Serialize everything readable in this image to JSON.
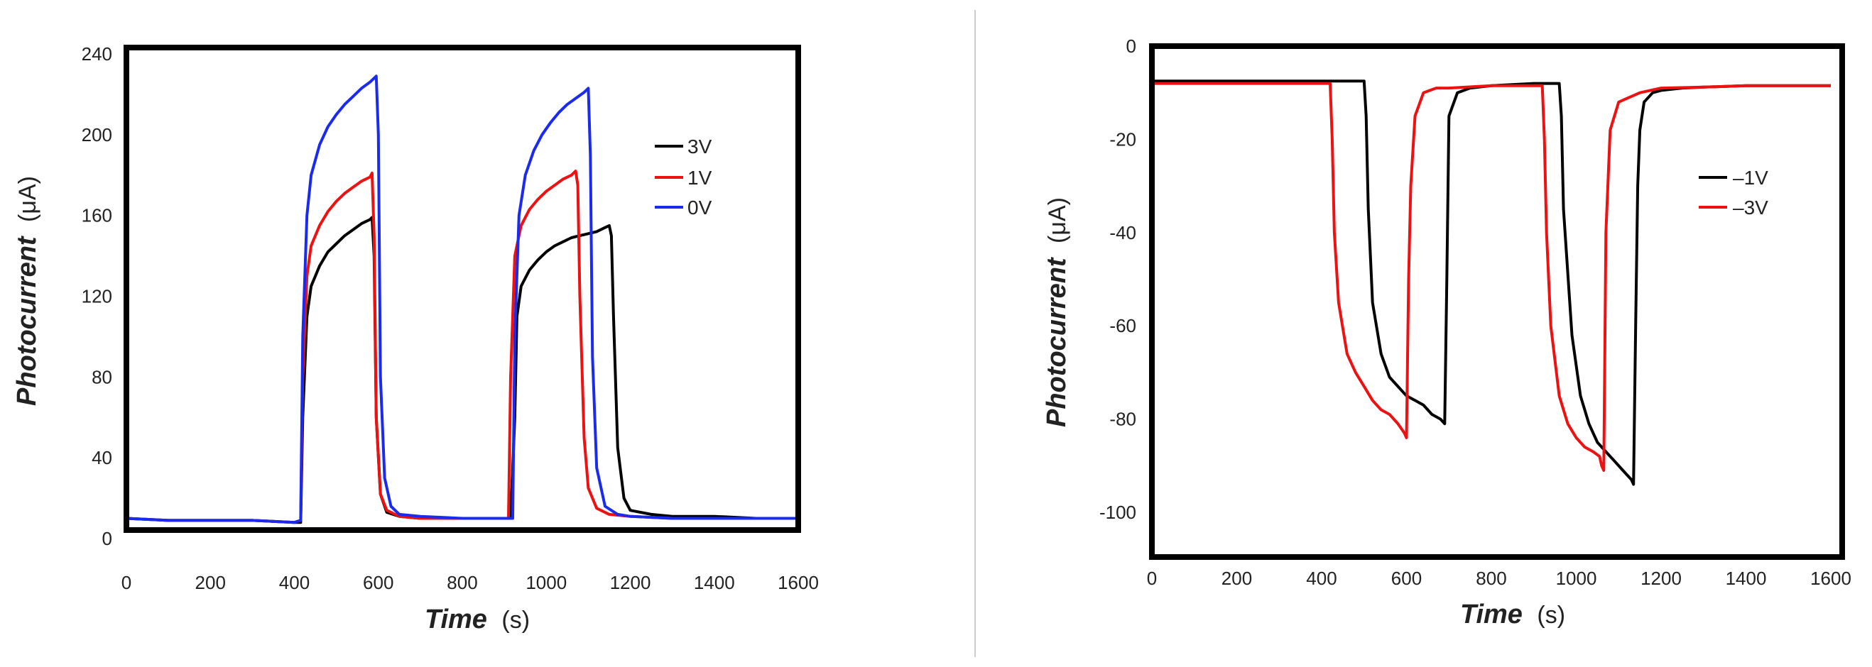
{
  "figure": {
    "divider_color": "#cccccc"
  },
  "chart_data": [
    {
      "type": "line",
      "title": "",
      "xlabel": "Time",
      "xlabel_unit": "(s)",
      "ylabel": "Photocurrent",
      "ylabel_unit": "(μA)",
      "xlim": [
        0,
        1600
      ],
      "ylim": [
        -5,
        245
      ],
      "xticks": [
        0,
        200,
        400,
        600,
        800,
        1000,
        1200,
        1400,
        1600
      ],
      "yticks": [
        0,
        40,
        80,
        120,
        160,
        200,
        240
      ],
      "legend_position": "top-right",
      "series": [
        {
          "name": "3V",
          "color": "#000000",
          "x": [
            0,
            100,
            200,
            300,
            400,
            415,
            420,
            430,
            440,
            460,
            480,
            500,
            520,
            540,
            560,
            580,
            585,
            590,
            595,
            605,
            620,
            650,
            700,
            800,
            900,
            915,
            925,
            930,
            940,
            960,
            980,
            1000,
            1020,
            1040,
            1060,
            1080,
            1100,
            1120,
            1140,
            1150,
            1155,
            1160,
            1170,
            1185,
            1200,
            1250,
            1300,
            1400,
            1500,
            1600
          ],
          "y": [
            10,
            9,
            9,
            9,
            8,
            8,
            60,
            110,
            125,
            135,
            142,
            146,
            150,
            153,
            156,
            158,
            159,
            140,
            60,
            22,
            13,
            11,
            10,
            10,
            10,
            10,
            60,
            110,
            125,
            133,
            138,
            142,
            145,
            147,
            149,
            150,
            151,
            152,
            154,
            155,
            150,
            110,
            45,
            20,
            14,
            12,
            11,
            11,
            10,
            10
          ]
        },
        {
          "name": "1V",
          "color": "#ee1111",
          "x": [
            0,
            100,
            200,
            300,
            400,
            415,
            420,
            430,
            440,
            460,
            480,
            500,
            520,
            540,
            560,
            580,
            585,
            590,
            595,
            605,
            620,
            650,
            700,
            800,
            900,
            910,
            915,
            925,
            940,
            960,
            980,
            1000,
            1020,
            1040,
            1060,
            1070,
            1075,
            1080,
            1090,
            1100,
            1120,
            1150,
            1200,
            1300,
            1400,
            1500,
            1600
          ],
          "y": [
            10,
            9,
            9,
            9,
            8,
            9,
            80,
            130,
            145,
            155,
            162,
            167,
            171,
            174,
            177,
            179,
            181,
            150,
            60,
            22,
            14,
            11,
            10,
            10,
            10,
            10,
            80,
            140,
            155,
            163,
            168,
            172,
            175,
            178,
            180,
            182,
            175,
            120,
            50,
            25,
            15,
            12,
            11,
            10,
            10,
            10,
            10
          ]
        },
        {
          "name": "0V",
          "color": "#1a2aee",
          "x": [
            0,
            100,
            200,
            300,
            400,
            415,
            420,
            430,
            440,
            460,
            480,
            500,
            520,
            540,
            560,
            580,
            595,
            600,
            605,
            615,
            630,
            650,
            700,
            800,
            900,
            920,
            925,
            935,
            950,
            970,
            990,
            1010,
            1030,
            1050,
            1070,
            1090,
            1100,
            1105,
            1110,
            1120,
            1140,
            1170,
            1200,
            1300,
            1400,
            1500,
            1600
          ],
          "y": [
            10,
            9,
            9,
            9,
            8,
            9,
            100,
            160,
            180,
            195,
            204,
            210,
            215,
            219,
            223,
            226,
            229,
            200,
            80,
            30,
            16,
            12,
            11,
            10,
            10,
            10,
            100,
            160,
            180,
            192,
            200,
            206,
            211,
            215,
            218,
            221,
            223,
            190,
            90,
            35,
            16,
            12,
            11,
            10,
            10,
            10,
            10
          ]
        }
      ]
    },
    {
      "type": "line",
      "title": "",
      "xlabel": "Time",
      "xlabel_unit": "(s)",
      "ylabel": "Photocurrent",
      "ylabel_unit": "(μA)",
      "xlim": [
        0,
        1650
      ],
      "ylim": [
        -110,
        0
      ],
      "xticks": [
        0,
        200,
        400,
        600,
        800,
        1000,
        1200,
        1400,
        1600
      ],
      "yticks": [
        0,
        -20,
        -40,
        -60,
        -80,
        -100
      ],
      "legend_position": "right",
      "series": [
        {
          "name": "–1V",
          "color": "#000000",
          "x": [
            0,
            100,
            200,
            300,
            400,
            500,
            505,
            510,
            520,
            540,
            560,
            580,
            600,
            620,
            640,
            660,
            680,
            690,
            695,
            700,
            720,
            750,
            800,
            900,
            950,
            960,
            965,
            970,
            990,
            1010,
            1030,
            1050,
            1070,
            1090,
            1110,
            1130,
            1135,
            1140,
            1145,
            1150,
            1160,
            1180,
            1200,
            1250,
            1300,
            1400,
            1500,
            1600
          ],
          "y": [
            -7.5,
            -7.5,
            -7.5,
            -7.5,
            -7.5,
            -7.5,
            -15,
            -35,
            -55,
            -66,
            -71,
            -73,
            -75,
            -76,
            -77,
            -79,
            -80,
            -81,
            -50,
            -15,
            -10,
            -9,
            -8.5,
            -8,
            -8,
            -8,
            -15,
            -35,
            -62,
            -75,
            -81,
            -85,
            -87,
            -89,
            -91,
            -93,
            -94,
            -60,
            -30,
            -18,
            -12,
            -10,
            -9.5,
            -9,
            -8.8,
            -8.5,
            -8.5,
            -8.5
          ]
        },
        {
          "name": "–3V",
          "color": "#ee1111",
          "x": [
            0,
            100,
            200,
            300,
            400,
            420,
            425,
            430,
            440,
            460,
            480,
            500,
            520,
            540,
            560,
            580,
            595,
            600,
            605,
            610,
            620,
            640,
            670,
            700,
            800,
            900,
            920,
            925,
            930,
            940,
            960,
            980,
            1000,
            1020,
            1040,
            1055,
            1060,
            1065,
            1070,
            1080,
            1100,
            1150,
            1200,
            1300,
            1400,
            1500,
            1600
          ],
          "y": [
            -8,
            -8,
            -8,
            -8,
            -8,
            -8,
            -20,
            -40,
            -55,
            -66,
            -70,
            -73,
            -76,
            -78,
            -79,
            -81,
            -83,
            -84,
            -50,
            -30,
            -15,
            -10,
            -9,
            -9,
            -8.5,
            -8.5,
            -8.5,
            -20,
            -40,
            -60,
            -75,
            -81,
            -84,
            -86,
            -87,
            -88,
            -90,
            -91,
            -40,
            -18,
            -12,
            -10,
            -9,
            -8.8,
            -8.5,
            -8.5,
            -8.5
          ]
        }
      ]
    }
  ]
}
